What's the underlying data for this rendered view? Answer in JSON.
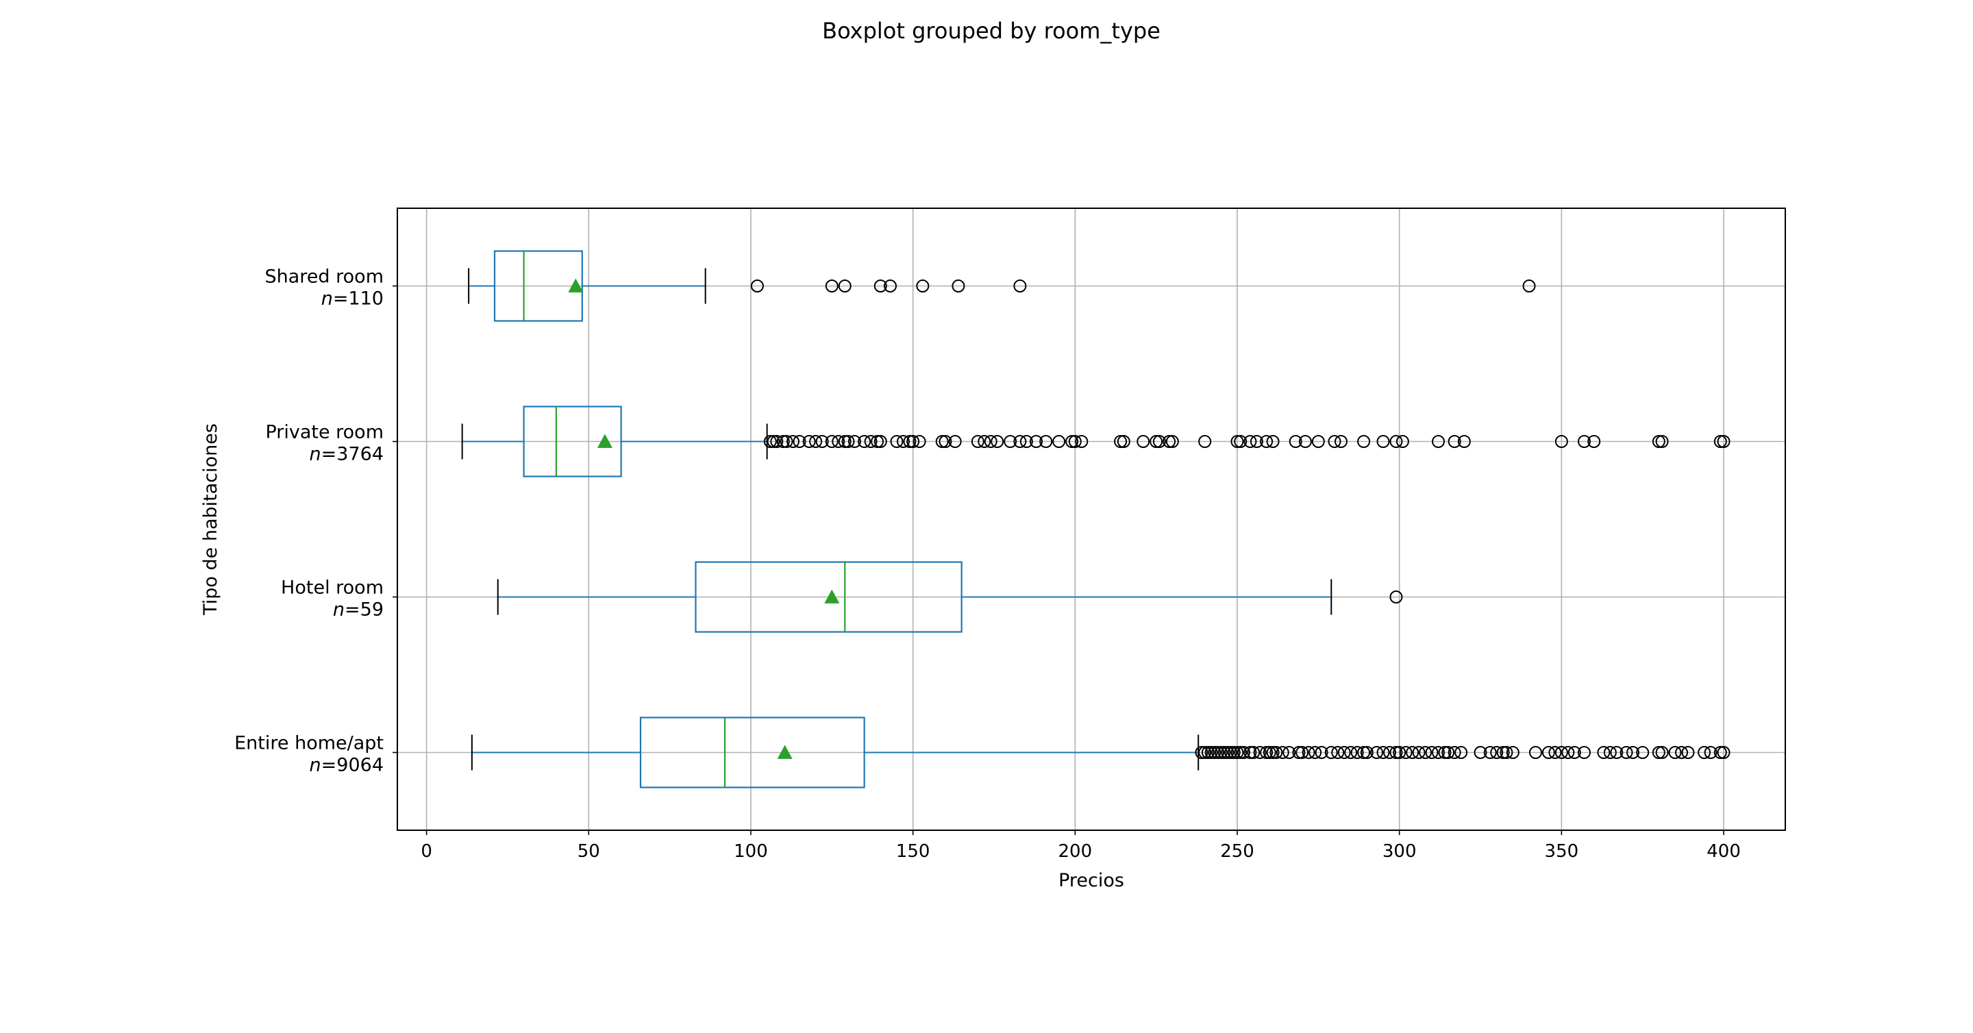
{
  "chart_data": {
    "type": "boxplot",
    "orientation": "horizontal",
    "title": "Boxplot grouped by room_type",
    "xlabel": "Precios",
    "ylabel": "Tipo de habitaciones",
    "xlim": [
      -9,
      419
    ],
    "xticks": [
      0,
      50,
      100,
      150,
      200,
      250,
      300,
      350,
      400
    ],
    "grid": true,
    "colors": {
      "box": "#1f77b4",
      "median": "#2ca02c",
      "mean_marker": "#2ca02c",
      "whisker": "#1f77b4",
      "cap": "#000000",
      "flier": "#000000",
      "grid": "#b0b0b0"
    },
    "categories": [
      {
        "name": "Entire home/apt",
        "n_label": "=9064",
        "whislo": 14,
        "q1": 66,
        "med": 92,
        "mean": 110.5,
        "q3": 135,
        "whishi": 238,
        "fliers": [
          239,
          240,
          241,
          242,
          243,
          244,
          245,
          246,
          247,
          248,
          249,
          250,
          251,
          252,
          254,
          255,
          257,
          259,
          260,
          261,
          262,
          264,
          266,
          269,
          270,
          272,
          274,
          276,
          279,
          281,
          283,
          285,
          287,
          289,
          290,
          293,
          295,
          297,
          299,
          300,
          302,
          304,
          306,
          308,
          310,
          312,
          314,
          315,
          317,
          319,
          325,
          328,
          330,
          332,
          333,
          335,
          342,
          346,
          348,
          350,
          352,
          354,
          357,
          363,
          365,
          367,
          370,
          372,
          375,
          380,
          381,
          385,
          387,
          389,
          394,
          396,
          399,
          400
        ]
      },
      {
        "name": "Hotel room",
        "n_label": "=59",
        "whislo": 22,
        "q1": 83,
        "med": 129,
        "mean": 125,
        "q3": 165,
        "whishi": 279,
        "fliers": [
          299
        ]
      },
      {
        "name": "Private room",
        "n_label": "=3764",
        "whislo": 11,
        "q1": 30,
        "med": 40,
        "mean": 55,
        "q3": 60,
        "whishi": 105,
        "fliers": [
          106,
          107,
          108,
          110,
          111,
          113,
          115,
          118,
          120,
          122,
          125,
          127,
          129,
          130,
          132,
          135,
          137,
          139,
          140,
          145,
          147,
          149,
          150,
          152,
          159,
          160,
          163,
          170,
          172,
          174,
          176,
          180,
          183,
          185,
          188,
          191,
          195,
          199,
          200,
          202,
          214,
          215,
          221,
          225,
          226,
          229,
          230,
          240,
          250,
          251,
          254,
          256,
          259,
          261,
          268,
          271,
          275,
          280,
          282,
          289,
          295,
          299,
          301,
          312,
          317,
          320,
          350,
          357,
          360,
          380,
          381,
          399,
          400
        ]
      },
      {
        "name": "Shared room",
        "n_label": "=110",
        "whislo": 13,
        "q1": 21,
        "med": 30,
        "mean": 46,
        "q3": 48,
        "whishi": 86,
        "fliers": [
          102,
          125,
          129,
          140,
          143,
          153,
          164,
          183,
          340
        ]
      }
    ]
  }
}
